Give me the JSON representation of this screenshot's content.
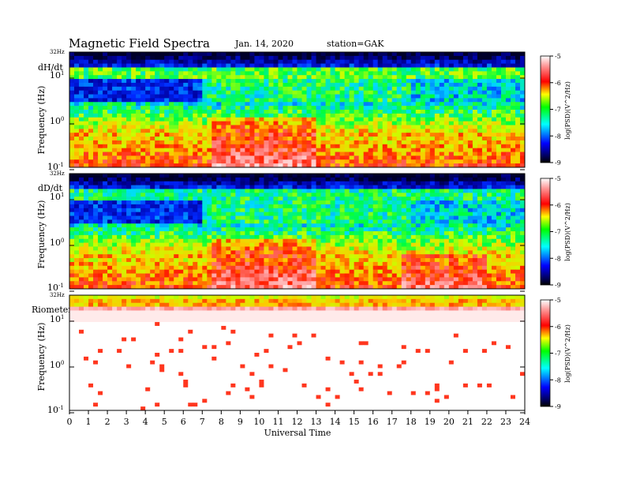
{
  "header": {
    "title": "Magnetic  Field  Spectra",
    "date": "Jan. 14, 2020",
    "station": "station=GAK"
  },
  "chart_data": [
    {
      "type": "heatmap",
      "panel_label": "dH/dt",
      "top_label": "32Hz",
      "ylabel": "Frequency  (Hz)",
      "y_scale": "log",
      "ylim": [
        0.1,
        32
      ],
      "xlim": [
        0,
        24
      ],
      "colorbar": {
        "label": "log(PSD)(V^2/Hz)",
        "ticks": [
          -5,
          -6,
          -7,
          -8,
          -9
        ],
        "range": [
          -9,
          -5
        ]
      }
    },
    {
      "type": "heatmap",
      "panel_label": "dD/dt",
      "top_label": "32Hz",
      "ylabel": "Frequency  (Hz)",
      "y_scale": "log",
      "ylim": [
        0.1,
        32
      ],
      "xlim": [
        0,
        24
      ],
      "colorbar": {
        "label": "log(PSD)(V^2/Hz)",
        "ticks": [
          -5,
          -6,
          -7,
          -8,
          -9
        ],
        "range": [
          -9,
          -5
        ]
      }
    },
    {
      "type": "heatmap",
      "panel_label": "Riometer",
      "top_label": "32Hz",
      "ylabel": "Frequency  (Hz)",
      "y_scale": "log",
      "ylim": [
        0.1,
        32
      ],
      "xlim": [
        0,
        24
      ],
      "colorbar": {
        "label": "log(PSD)(V^2/Hz)",
        "ticks": [
          -5,
          -6,
          -7,
          -8,
          -9
        ],
        "range": [
          -9,
          -5
        ]
      }
    }
  ],
  "xaxis": {
    "label": "Universal Time",
    "ticks": [
      "0",
      "1",
      "2",
      "3",
      "4",
      "5",
      "6",
      "7",
      "8",
      "9",
      "10",
      "11",
      "12",
      "13",
      "14",
      "15",
      "16",
      "17",
      "18",
      "19",
      "20",
      "21",
      "22",
      "23",
      "24"
    ]
  },
  "yticks": {
    "ten_base": "10",
    "exp_top": "1",
    "exp_mid": "0",
    "exp_bot": "-1"
  }
}
